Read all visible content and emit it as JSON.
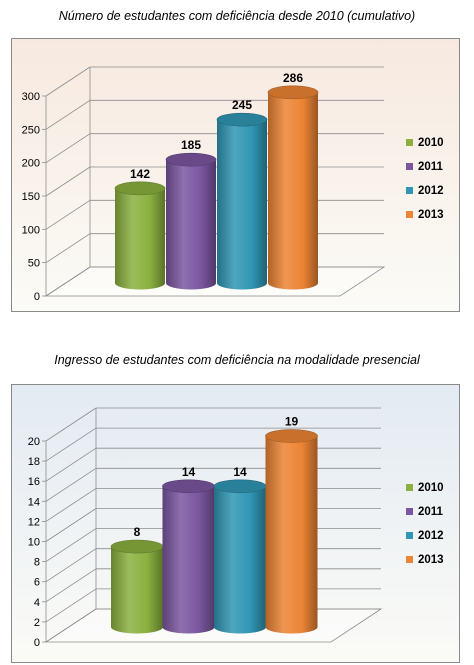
{
  "chart_data": [
    {
      "type": "bar",
      "title": "Número de estudantes com deficiência desde 2010 (cumulativo)",
      "categories": [
        "2010",
        "2011",
        "2012",
        "2013"
      ],
      "values": [
        142,
        185,
        245,
        286
      ],
      "ylim": [
        0,
        300
      ],
      "yticks": [
        "0",
        "50",
        "100",
        "150",
        "200",
        "250",
        "300"
      ],
      "legend_position": "right",
      "grid": true,
      "colors": [
        "#8bb03f",
        "#7b56a0",
        "#2f96b4",
        "#ec8434"
      ],
      "background": "#f7e9df"
    },
    {
      "type": "bar",
      "title": "Ingresso de estudantes com deficiência na modalidade presencial",
      "categories": [
        "2010",
        "2011",
        "2012",
        "2013"
      ],
      "values": [
        8,
        14,
        14,
        19
      ],
      "ylim": [
        0,
        20
      ],
      "yticks": [
        "0",
        "2",
        "4",
        "6",
        "8",
        "10",
        "12",
        "14",
        "16",
        "18",
        "20"
      ],
      "legend_position": "right",
      "grid": true,
      "colors": [
        "#8bb03f",
        "#7b56a0",
        "#2f96b4",
        "#ec8434"
      ],
      "background": "#e3eaf2"
    }
  ]
}
